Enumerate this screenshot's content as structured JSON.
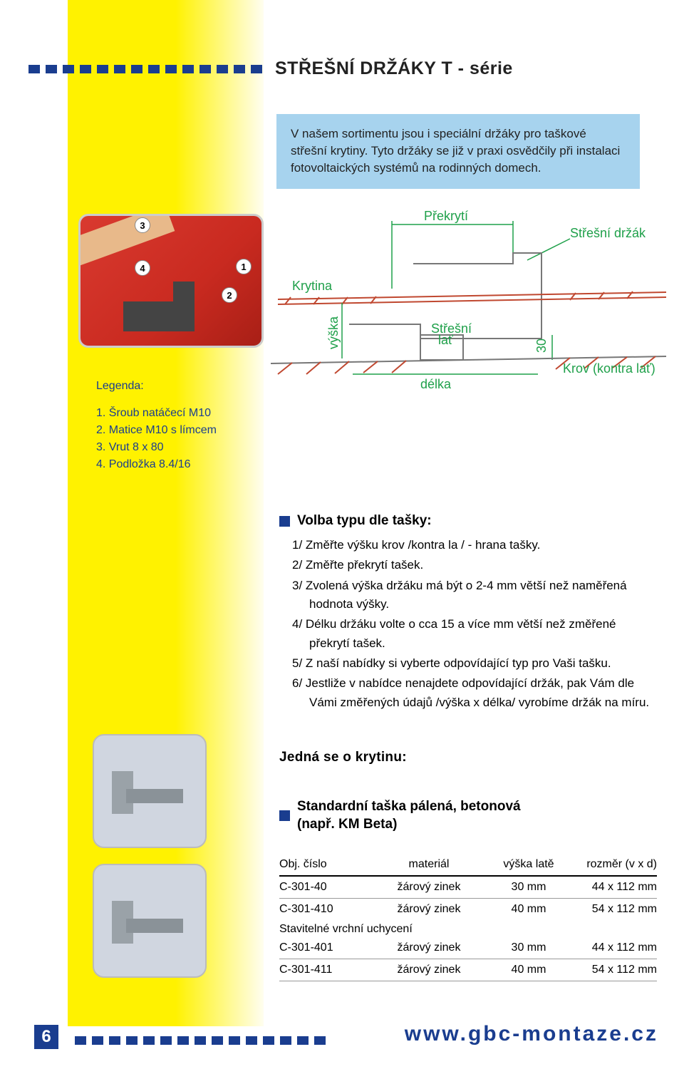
{
  "colors": {
    "brand_blue": "#1a3d8f",
    "yellow": "#fff200",
    "intro_bg": "#a7d3ee",
    "green": "#1fa04a",
    "hatch": "#c04830"
  },
  "title": "STŘEŠNÍ DRŽÁKY T - série",
  "intro": "V našem sortimentu jsou i speciální držáky pro taškové střešní krytiny. Tyto držáky se již v praxi osvědčily při instalaci fotovoltaických systémů na rodinných domech.",
  "callouts": {
    "c1": "1",
    "c2": "2",
    "c3": "3",
    "c4": "4"
  },
  "schematic_labels": {
    "prekryti": "Překrytí",
    "drzak": "Střešní držák",
    "krytina": "Krytina",
    "vyska": "výška",
    "lat": "Střešní lať",
    "thirty": "30",
    "delka": "délka",
    "krov": "Krov (kontra lať)"
  },
  "legenda": {
    "head": "Legenda:",
    "items": [
      "1. Šroub natáčecí M10",
      "2. Matice M10 s límcem",
      "3. Vrut 8 x 80",
      "4. Podložka 8.4/16"
    ]
  },
  "volba": {
    "head": "Volba typu dle tašky:",
    "items": [
      "1/  Změřte výšku krov /kontra la / - hrana tašky.",
      "2/  Změřte překrytí tašek.",
      "3/  Zvolená výška držáku má být o 2-4 mm větší než naměřená hodnota výšky.",
      "4/  Délku držáku volte o cca 15 a více mm větší než změřené překrytí tašek.",
      "5/  Z naší nabídky si vyberte odpovídající typ pro Vaši tašku.",
      "6/  Jestliže v nabídce nenajdete odpovídající držák, pak Vám dle Vámi změřených údajů /výška x délka/ vyrobíme držák na míru."
    ]
  },
  "krytinu_head": "Jedná se o krytinu:",
  "standard_head_l1": "Standardní taška pálená, betonová",
  "standard_head_l2": "(např. KM Beta)",
  "table": {
    "columns": [
      "Obj. číslo",
      "materiál",
      "výška latě",
      "rozměr (v x d)"
    ],
    "rows": [
      [
        "C-301-40",
        "žárový zinek",
        "30 mm",
        "44 x 112 mm"
      ],
      [
        "C-301-410",
        "žárový zinek",
        "40 mm",
        "54 x 112 mm"
      ]
    ],
    "note": "Stavitelné vrchní uchycení",
    "rows2": [
      [
        "C-301-401",
        "žárový zinek",
        "30 mm",
        "44 x 112 mm"
      ],
      [
        "C-301-411",
        "žárový zinek",
        "40 mm",
        "54 x 112 mm"
      ]
    ]
  },
  "footer": {
    "page": "6",
    "url": "www.gbc-montaze.cz"
  },
  "leader_dots": 14,
  "footer_dots": 15
}
